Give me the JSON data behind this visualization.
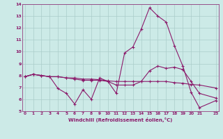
{
  "xlabel": "Windchill (Refroidissement éolien,°C)",
  "bg_color": "#cceae7",
  "grid_color": "#aaccca",
  "line_color": "#8b1a6b",
  "x_ticks": [
    0,
    1,
    2,
    3,
    4,
    5,
    6,
    7,
    8,
    9,
    10,
    11,
    12,
    13,
    14,
    15,
    16,
    17,
    18,
    19,
    20,
    21,
    23
  ],
  "ylim": [
    5,
    14
  ],
  "xlim": [
    -0.3,
    23.3
  ],
  "yticks": [
    5,
    6,
    7,
    8,
    9,
    10,
    11,
    12,
    13,
    14
  ],
  "line1_x": [
    0,
    1,
    2,
    3,
    4,
    5,
    6,
    7,
    8,
    9,
    10,
    11,
    12,
    13,
    14,
    15,
    16,
    17,
    18,
    19,
    20,
    21,
    23
  ],
  "line1_y": [
    7.9,
    8.1,
    8.0,
    7.9,
    7.9,
    7.8,
    7.8,
    7.7,
    7.7,
    7.65,
    7.55,
    7.5,
    7.5,
    7.5,
    7.5,
    7.5,
    7.5,
    7.5,
    7.4,
    7.35,
    7.25,
    7.2,
    6.95
  ],
  "line2_x": [
    0,
    1,
    2,
    3,
    4,
    5,
    6,
    7,
    8,
    9,
    10,
    11,
    12,
    13,
    14,
    15,
    16,
    17,
    18,
    19,
    20,
    21,
    23
  ],
  "line2_y": [
    7.9,
    8.1,
    8.0,
    7.9,
    6.9,
    6.5,
    5.6,
    6.8,
    6.0,
    7.8,
    7.5,
    6.5,
    9.9,
    10.4,
    11.9,
    13.7,
    13.0,
    12.5,
    10.5,
    8.8,
    6.6,
    5.3,
    5.9
  ],
  "line3_x": [
    0,
    1,
    2,
    3,
    4,
    5,
    6,
    7,
    8,
    9,
    10,
    11,
    12,
    13,
    14,
    15,
    16,
    17,
    18,
    19,
    20,
    21,
    23
  ],
  "line3_y": [
    7.9,
    8.1,
    8.0,
    7.9,
    7.9,
    7.8,
    7.7,
    7.6,
    7.6,
    7.6,
    7.5,
    7.2,
    7.2,
    7.2,
    7.5,
    8.4,
    8.8,
    8.6,
    8.7,
    8.5,
    7.5,
    6.5,
    6.1
  ]
}
